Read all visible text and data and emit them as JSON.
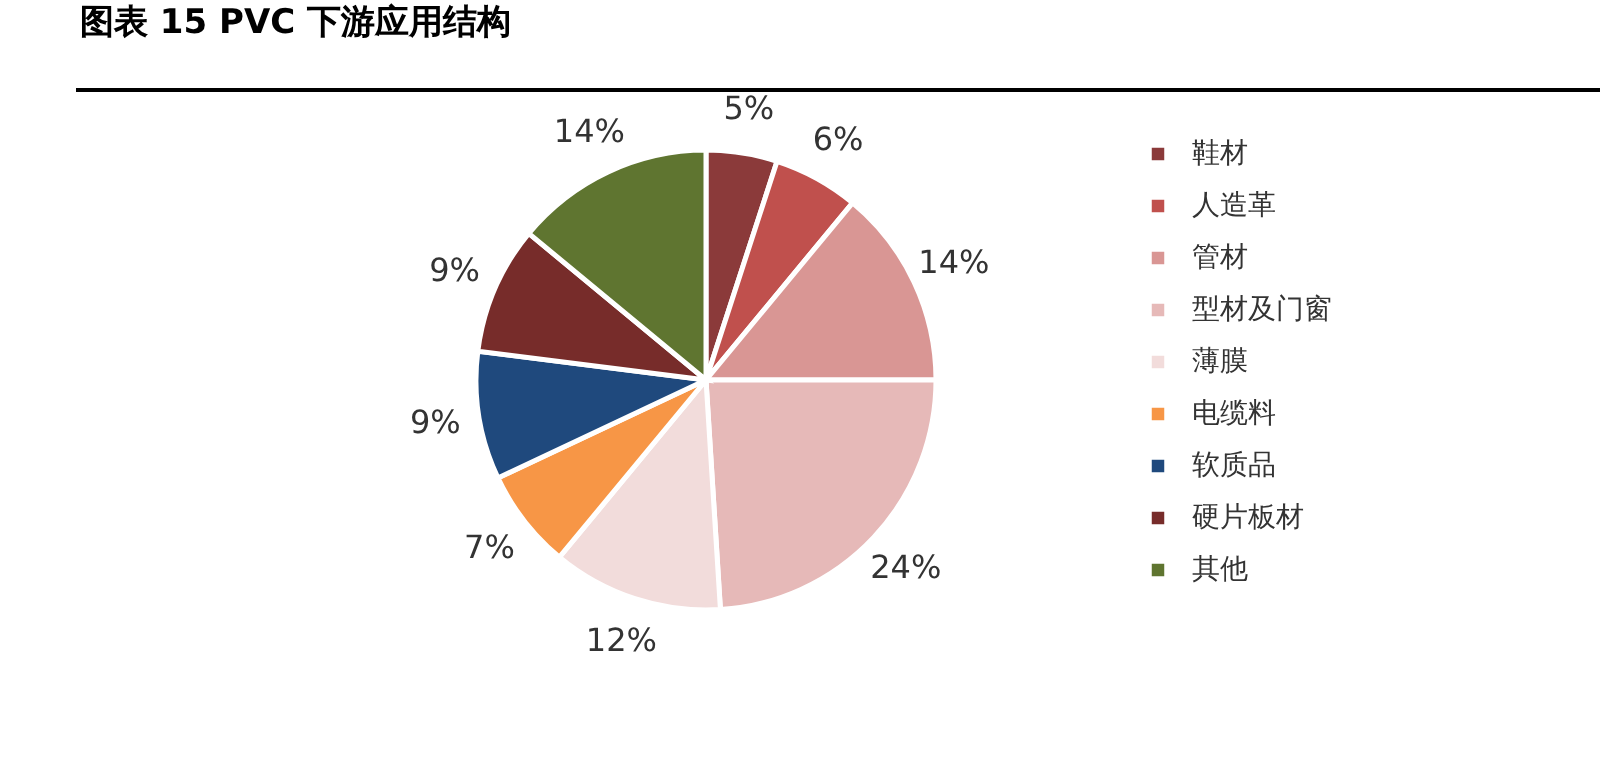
{
  "chart_data": {
    "type": "pie",
    "title": "图表 15 PVC 下游应用结构",
    "categories": [
      "鞋材",
      "人造革",
      "管材",
      "型材及门窗",
      "薄膜",
      "电缆料",
      "软质品",
      "硬片板材",
      "其他"
    ],
    "values": [
      5,
      6,
      14,
      24,
      12,
      7,
      9,
      9,
      14
    ],
    "value_labels": [
      "5%",
      "6%",
      "14%",
      "24%",
      "12%",
      "7%",
      "9%",
      "9%",
      "14%"
    ],
    "colors": [
      "#8b3a3a",
      "#c0504d",
      "#d99694",
      "#e6b9b8",
      "#f2dcdb",
      "#f79646",
      "#1f497d",
      "#772c2a",
      "#5f7530"
    ],
    "legend": "right"
  }
}
